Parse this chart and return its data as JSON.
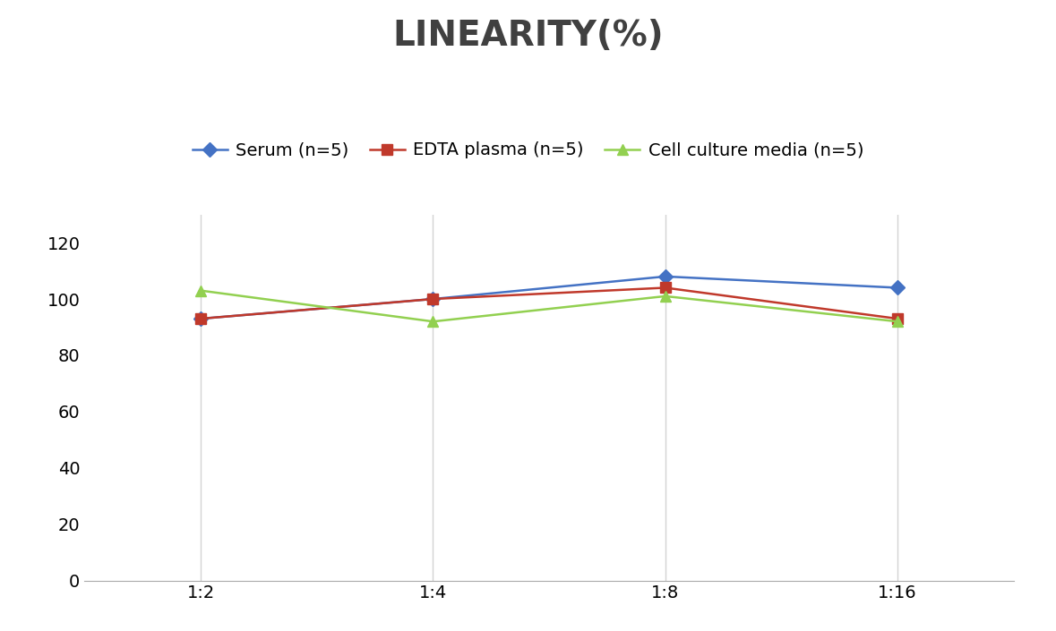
{
  "title": "LINEARITY(%)",
  "title_fontsize": 28,
  "title_fontweight": "bold",
  "title_color": "#404040",
  "x_labels": [
    "1:2",
    "1:4",
    "1:8",
    "1:16"
  ],
  "x_positions": [
    0,
    1,
    2,
    3
  ],
  "series": [
    {
      "label": "Serum (n=5)",
      "values": [
        93,
        100,
        108,
        104
      ],
      "color": "#4472C4",
      "marker": "D",
      "markersize": 8
    },
    {
      "label": "EDTA plasma (n=5)",
      "values": [
        93,
        100,
        104,
        93
      ],
      "color": "#C0392B",
      "marker": "s",
      "markersize": 8
    },
    {
      "label": "Cell culture media (n=5)",
      "values": [
        103,
        92,
        101,
        92
      ],
      "color": "#92D050",
      "marker": "^",
      "markersize": 8
    }
  ],
  "ylim": [
    0,
    130
  ],
  "yticks": [
    0,
    20,
    40,
    60,
    80,
    100,
    120
  ],
  "grid_color": "#D3D3D3",
  "background_color": "#FFFFFF",
  "legend_fontsize": 14,
  "axis_fontsize": 14
}
